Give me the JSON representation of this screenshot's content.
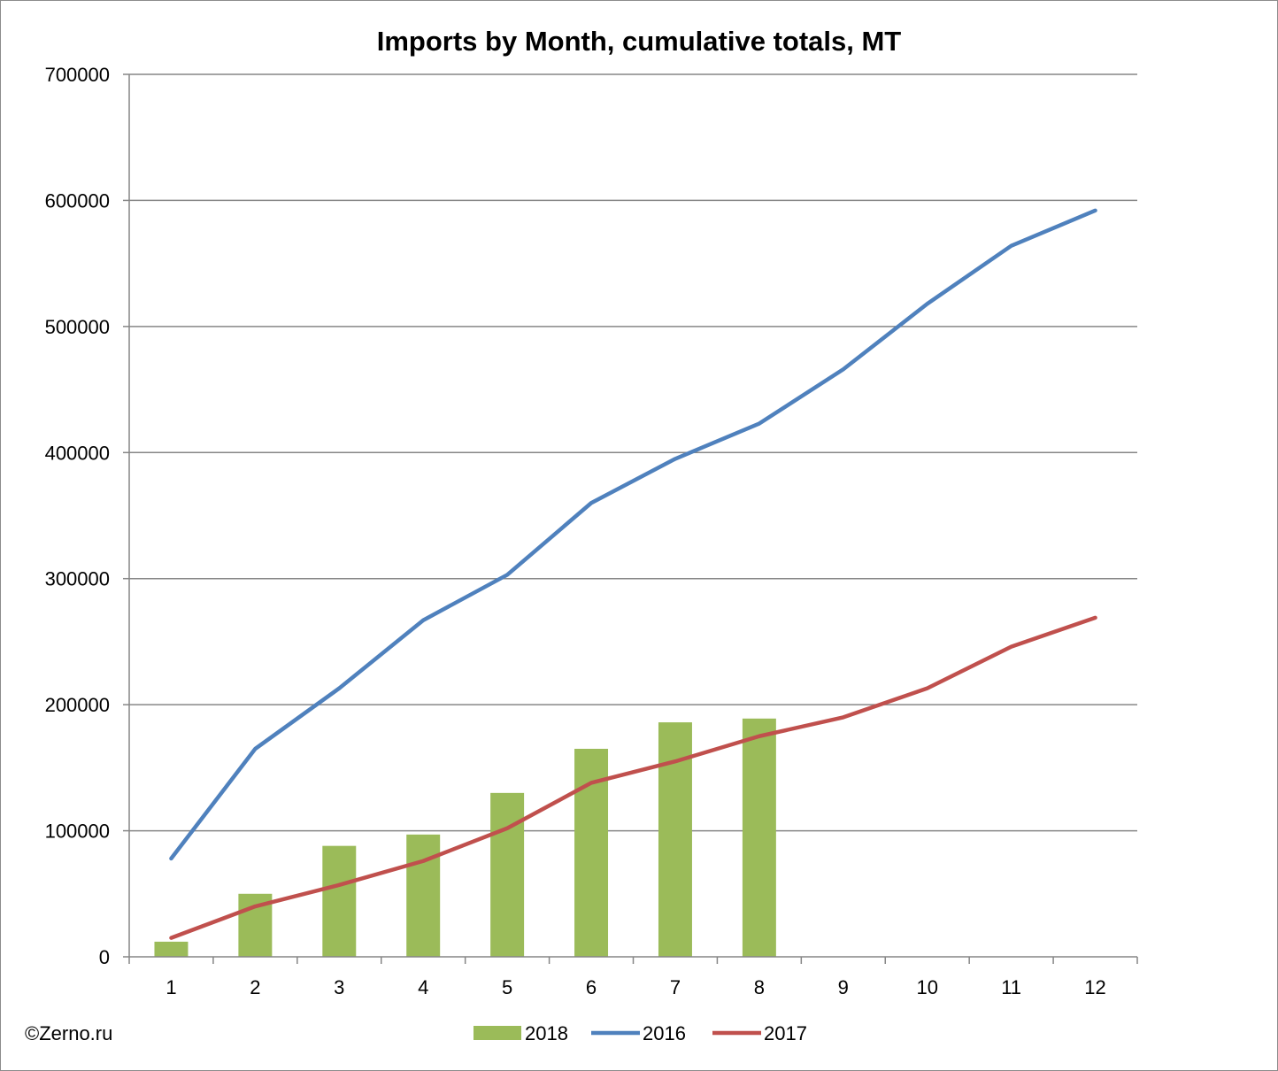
{
  "chart_data": {
    "type": "bar",
    "title": "Imports by Month, cumulative totals, MT",
    "categories": [
      "1",
      "2",
      "3",
      "4",
      "5",
      "6",
      "7",
      "8",
      "9",
      "10",
      "11",
      "12"
    ],
    "ylim": [
      0,
      700000
    ],
    "yticks": [
      0,
      100000,
      200000,
      300000,
      400000,
      500000,
      600000,
      700000
    ],
    "ytick_labels": [
      "0",
      "100000",
      "200000",
      "300000",
      "400000",
      "500000",
      "600000",
      "700000"
    ],
    "grid": "horizontal",
    "legend_position": "bottom",
    "series": [
      {
        "name": "2018",
        "type": "bar",
        "color": "#9BBB59",
        "values": [
          12000,
          50000,
          88000,
          97000,
          130000,
          165000,
          186000,
          189000,
          null,
          null,
          null,
          null
        ]
      },
      {
        "name": "2016",
        "type": "line",
        "color": "#4F81BD",
        "values": [
          78000,
          165000,
          213000,
          267000,
          303000,
          360000,
          395000,
          423000,
          466000,
          518000,
          564000,
          592000
        ]
      },
      {
        "name": "2017",
        "type": "line",
        "color": "#C0504D",
        "values": [
          15000,
          40000,
          57000,
          76000,
          102000,
          138000,
          155000,
          175000,
          190000,
          213000,
          246000,
          269000
        ]
      }
    ]
  },
  "credit": "©Zerno.ru"
}
